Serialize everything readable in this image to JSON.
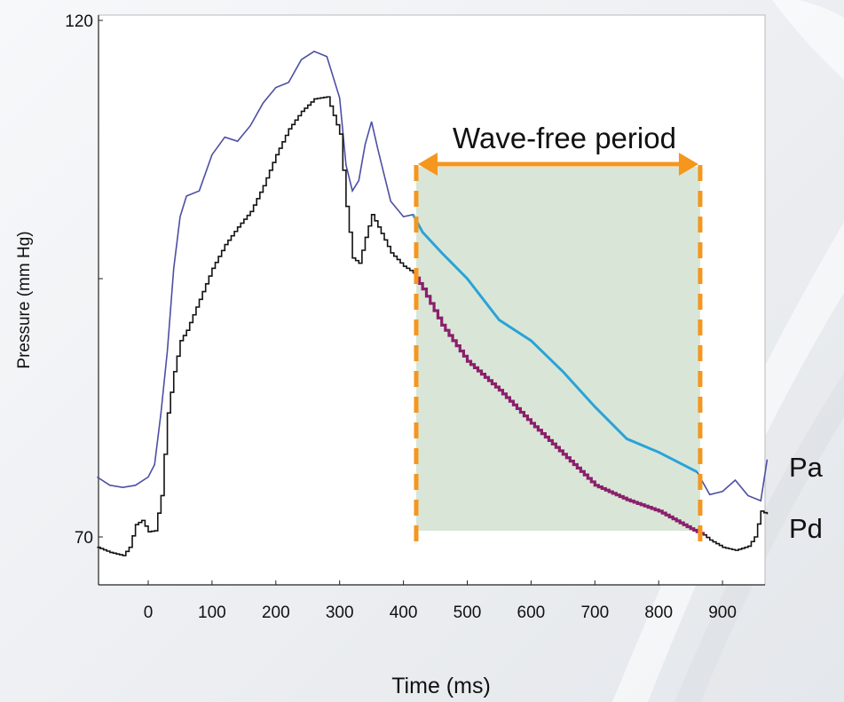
{
  "chart_data": {
    "type": "line",
    "xlabel": "Time (ms)",
    "ylabel": "Pressure (mm Hg)",
    "xlim": [
      -80,
      970
    ],
    "ylim": [
      62,
      120
    ],
    "xticks": [
      0,
      100,
      200,
      300,
      400,
      500,
      600,
      700,
      800,
      900
    ],
    "ytick_labels": [
      {
        "value": 120,
        "label": "120"
      },
      {
        "value": 95,
        "label": ""
      },
      {
        "value": 70,
        "label": "70"
      }
    ],
    "grid": false,
    "series": [
      {
        "name": "Pa",
        "color": "#4b4fa3",
        "highlight_color": "#2aa3d8",
        "x": [
          -80,
          -60,
          -40,
          -20,
          0,
          10,
          20,
          30,
          40,
          50,
          60,
          80,
          100,
          120,
          140,
          160,
          180,
          200,
          220,
          240,
          260,
          280,
          300,
          310,
          320,
          330,
          340,
          350,
          360,
          380,
          400,
          415,
          430,
          460,
          500,
          550,
          600,
          650,
          700,
          750,
          800,
          860,
          880,
          900,
          920,
          940,
          960,
          970
        ],
        "y": [
          75.8,
          75,
          74.8,
          75,
          75.8,
          77,
          82,
          88,
          96,
          101,
          103,
          103.5,
          107,
          108.7,
          108.3,
          109.8,
          112,
          113.5,
          114,
          116.2,
          117,
          116.5,
          112.5,
          106,
          103.5,
          104.5,
          108,
          110.2,
          107.5,
          102.5,
          101,
          101.2,
          99.5,
          97.5,
          95,
          91,
          89,
          86,
          82.6,
          79.5,
          78.2,
          76.3,
          74.1,
          74.4,
          75.5,
          74,
          73.5,
          77.5
        ]
      },
      {
        "name": "Pd",
        "color": "#111111",
        "highlight_color": "#8b1f6b",
        "x": [
          -80,
          -60,
          -40,
          -30,
          -20,
          -10,
          0,
          10,
          20,
          30,
          40,
          50,
          60,
          80,
          100,
          120,
          140,
          160,
          180,
          200,
          220,
          240,
          260,
          280,
          300,
          310,
          320,
          330,
          340,
          350,
          360,
          380,
          400,
          415,
          430,
          460,
          500,
          550,
          600,
          650,
          700,
          750,
          800,
          850,
          870,
          880,
          900,
          920,
          940,
          950,
          960,
          970
        ],
        "y": [
          69,
          68.5,
          68.2,
          69,
          71.2,
          71.6,
          70.5,
          70.6,
          74,
          82,
          86,
          89,
          90,
          93,
          96,
          98.3,
          100,
          101.5,
          104,
          107,
          109.5,
          111.2,
          112.4,
          112.6,
          109,
          102,
          97,
          96.5,
          99,
          101.2,
          100,
          97.5,
          96.2,
          95.6,
          94,
          90.5,
          87,
          84.2,
          81,
          78,
          75,
          73.6,
          72.5,
          70.8,
          70.2,
          69.7,
          69,
          68.7,
          69.1,
          70,
          72.5,
          72.2
        ]
      }
    ],
    "annotations": {
      "wave_free_label": "Wave-free period",
      "wave_free_start": 420,
      "wave_free_end": 865,
      "arrow_color": "#f5961e",
      "shade_color": "#c9dcc6"
    },
    "series_labels": [
      "Pa",
      "Pd"
    ]
  }
}
